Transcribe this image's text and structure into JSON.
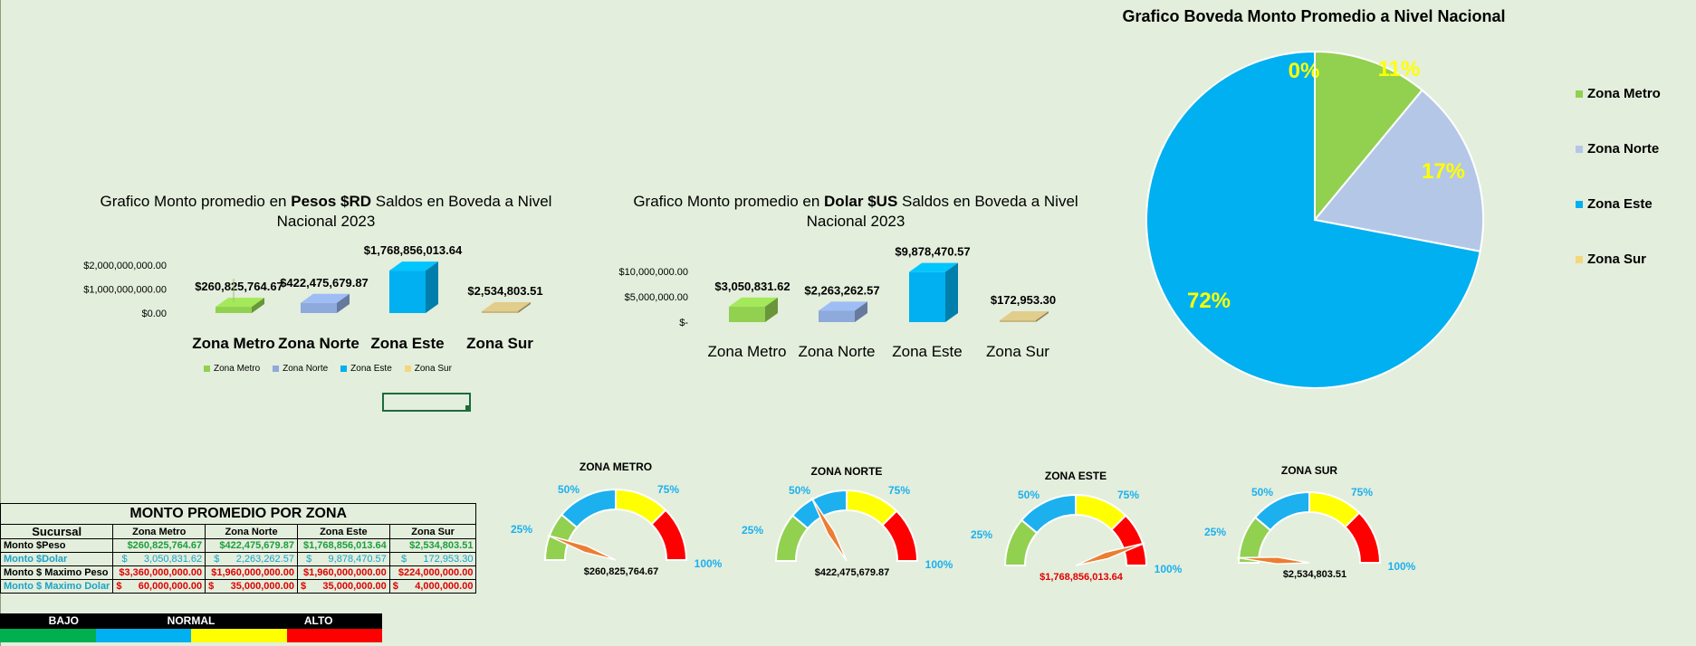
{
  "colors": {
    "metro": "#92d050",
    "norte": "#b4c7e7",
    "este": "#00b0f0",
    "sur": "#f4d77a",
    "bar_sur": "#c9b77d",
    "gauge_green": "#92d050",
    "gauge_blue": "#1cb0ef",
    "gauge_yellow": "#ffff00",
    "gauge_red": "#ff0000",
    "needle": "#ed7d31"
  },
  "peso_chart": {
    "title_pre": "Grafico Monto promedio en ",
    "title_bold": "Pesos $RD",
    "title_post": " Saldos en Boveda a Nivel Nacional 2023",
    "legend": [
      "Zona Metro",
      "Zona Norte",
      "Zona Este",
      "Zona Sur"
    ]
  },
  "dolar_chart": {
    "title_pre": "Grafico Monto promedio en ",
    "title_bold": "Dolar $US",
    "title_post": " Saldos en Boveda a Nivel Nacional 2023"
  },
  "pie_chart": {
    "title": "Grafico Boveda Monto Promedio a Nivel Nacional",
    "legend": [
      "Zona Metro",
      "Zona Norte",
      "Zona Este",
      "Zona Sur"
    ]
  },
  "chart_data": [
    {
      "type": "bar",
      "title": "Grafico Monto promedio en Pesos $RD Saldos en Boveda a Nivel Nacional 2023",
      "categories": [
        "Zona Metro",
        "Zona Norte",
        "Zona Este",
        "Zona Sur"
      ],
      "values": [
        260825764.67,
        422475679.87,
        1768856013.64,
        2534803.51
      ],
      "data_labels": [
        "$260,825,764.67",
        "$422,475,679.87",
        "$1,768,856,013.64",
        "$2,534,803.51"
      ],
      "ytick_labels": [
        "$2,000,000,000.00",
        "$1,000,000,000.00",
        "$0.00"
      ],
      "ylim": [
        0,
        2000000000
      ],
      "legend_placement": "bottom"
    },
    {
      "type": "bar",
      "title": "Grafico Monto promedio en Dolar $US Saldos en Boveda a Nivel Nacional 2023",
      "categories": [
        "Zona Metro",
        "Zona Norte",
        "Zona Este",
        "Zona Sur"
      ],
      "values": [
        3050831.62,
        2263262.57,
        9878470.57,
        172953.3
      ],
      "data_labels": [
        "$3,050,831.62",
        "$2,263,262.57",
        "$9,878,470.57",
        "$172,953.30"
      ],
      "ytick_labels": [
        "$10,000,000.00",
        "$5,000,000.00",
        "$-"
      ],
      "ylim": [
        0,
        10000000
      ]
    },
    {
      "type": "pie",
      "title": "Grafico Boveda Monto Promedio a Nivel Nacional",
      "categories": [
        "Zona Metro",
        "Zona Norte",
        "Zona Este",
        "Zona Sur"
      ],
      "values": [
        11,
        17,
        72,
        0
      ],
      "percent_labels": [
        "11%",
        "17%",
        "72%",
        "0%"
      ],
      "legend_placement": "right"
    },
    {
      "type": "gauge",
      "gauges": [
        {
          "title": "ZONA METRO",
          "value_label": "$260,825,764.67",
          "value_color": "#000000",
          "needle_angle": 160
        },
        {
          "title": "ZONA  NORTE",
          "value_label": "$422,475,679.87",
          "value_color": "#000000",
          "needle_angle": 119
        },
        {
          "title": "ZONA ESTE",
          "value_label": "$1,768,856,013.64",
          "value_color": "#e00000",
          "needle_angle": 18
        },
        {
          "title": "ZONA SUR",
          "value_label": "$2,534,803.51",
          "value_color": "#000000",
          "needle_angle": 176
        }
      ],
      "tick_labels": [
        "25%",
        "50%",
        "75%",
        "100%"
      ]
    }
  ],
  "summary_table": {
    "title": "MONTO PROMEDIO POR ZONA",
    "headers": [
      "Sucursal",
      "Zona Metro",
      "Zona Norte",
      "Zona Este",
      "Zona Sur"
    ],
    "rows": [
      {
        "name": "Monto $Peso",
        "cells": [
          "$260,825,764.67",
          "$422,475,679.87",
          "$1,768,856,013.64",
          "$2,534,803.51"
        ]
      },
      {
        "name": "Monto $Dolar",
        "cells": [
          "$      3,050,831.62",
          "$      2,263,262.57",
          "$      9,878,470.57",
          "$      172,953.30"
        ]
      },
      {
        "name": "Monto $ Maximo Peso",
        "cells": [
          "$3,360,000,000.00",
          "$1,960,000,000.00",
          "$1,960,000,000.00",
          "$224,000,000.00"
        ]
      },
      {
        "name": "Monto $ Maximo Dolar",
        "cells": [
          "$      60,000,000.00",
          "$      35,000,000.00",
          "$      35,000,000.00",
          "$      4,000,000.00"
        ]
      }
    ]
  },
  "status_legend": {
    "labels": [
      "BAJO",
      "NORMAL",
      "ALTO"
    ],
    "colors": [
      "#00b050",
      "#00b0f0",
      "#ffff00",
      "#ff0000"
    ]
  }
}
